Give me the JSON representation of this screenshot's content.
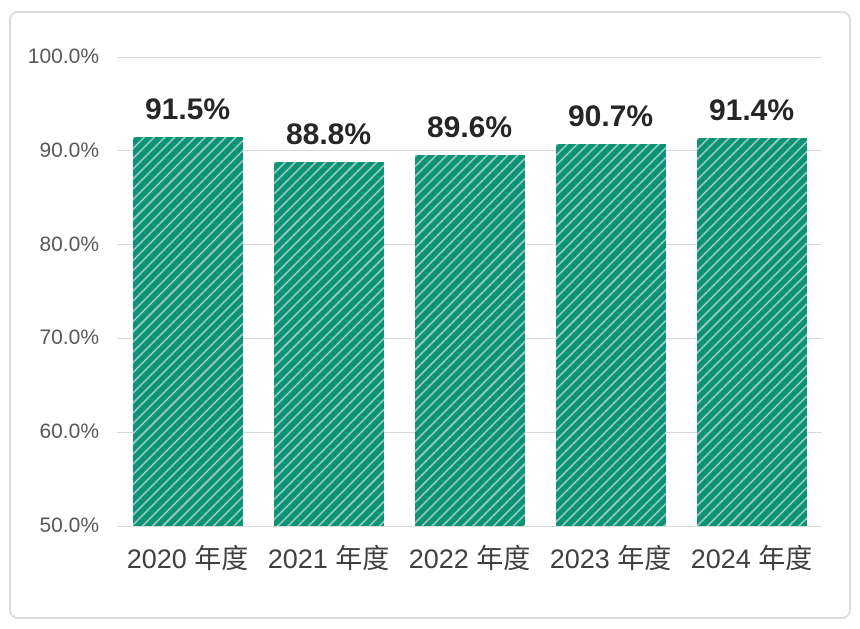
{
  "chart_data": {
    "type": "bar",
    "title": "",
    "xlabel": "",
    "ylabel": "",
    "categories": [
      "2020 年度",
      "2021 年度",
      "2022 年度",
      "2023 年度",
      "2024 年度"
    ],
    "values": [
      91.5,
      88.8,
      89.6,
      90.7,
      91.4
    ],
    "value_labels": [
      "91.5%",
      "88.8%",
      "89.6%",
      "90.7%",
      "91.4%"
    ],
    "ylim": [
      50,
      100
    ],
    "yticks": [
      {
        "value": 100,
        "label": "100.0%"
      },
      {
        "value": 90,
        "label": "90.0%"
      },
      {
        "value": 80,
        "label": "80.0%"
      },
      {
        "value": 70,
        "label": "70.0%"
      },
      {
        "value": 60,
        "label": "60.0%"
      },
      {
        "value": 50,
        "label": "50.0%"
      }
    ],
    "grid": "horizontal",
    "legend_position": "none",
    "bar_style": "diagonal-hatch-up-right",
    "colors": {
      "bar_fill": "#0E9276",
      "gridline": "#D9D9D9",
      "y_tick_label": "#595959",
      "category_label": "#404040",
      "value_label": "#262626",
      "card_border": "#DBDBDB",
      "background": "#FFFFFF"
    }
  }
}
